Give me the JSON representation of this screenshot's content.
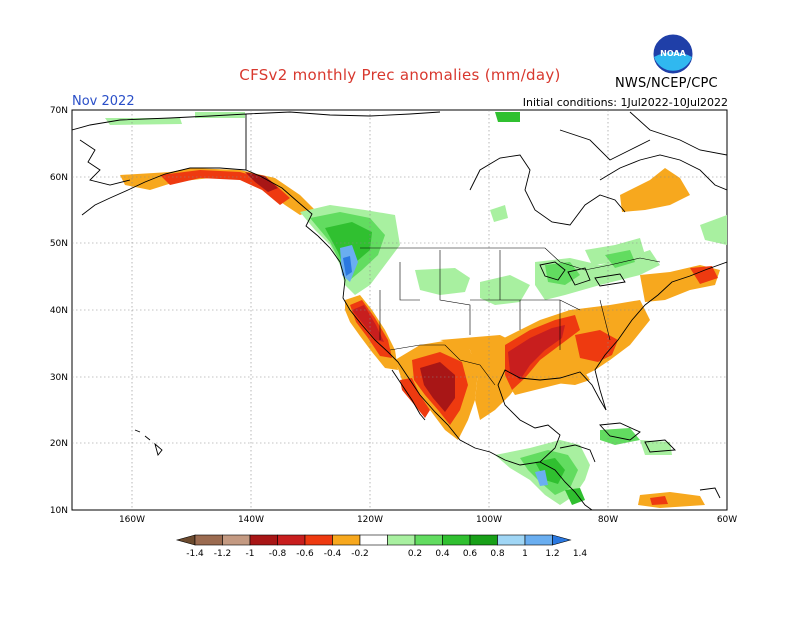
{
  "header": {
    "title": "CFSv2 monthly Prec anomalies (mm/day)",
    "month": "Nov 2022",
    "initial_conditions": "Initial conditions: 1Jul2022-10Jul2022",
    "agency": "NWS/NCEP/CPC",
    "logo_text": "NOAA"
  },
  "map": {
    "lat_labels": [
      "70N",
      "60N",
      "50N",
      "40N",
      "30N",
      "20N",
      "10N"
    ],
    "lon_labels": [
      "160W",
      "140W",
      "120W",
      "100W",
      "80W",
      "60W"
    ]
  },
  "colorbar": {
    "labels": [
      "-1.4",
      "-1.2",
      "-1",
      "-0.8",
      "-0.6",
      "-0.4",
      "-0.2",
      "0.2",
      "0.4",
      "0.6",
      "0.8",
      "1",
      "1.2",
      "1.4"
    ],
    "colors": [
      "#6b4a2e",
      "#9b6b50",
      "#c49a82",
      "#a81616",
      "#c81e1e",
      "#ee3a10",
      "#f7a81e",
      "#ffffff",
      "#a8f0a0",
      "#62dc60",
      "#30c030",
      "#18a018",
      "#a0d6f5",
      "#6aaef0",
      "#2a78e0"
    ]
  }
}
